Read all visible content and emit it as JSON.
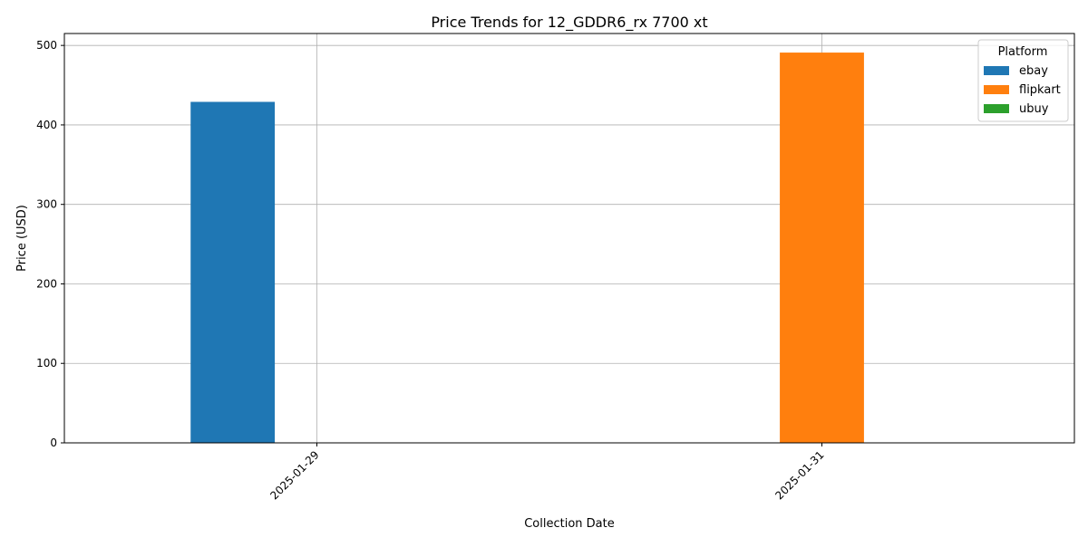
{
  "chart_data": {
    "type": "bar",
    "title": "Price Trends for 12_GDDR6_rx 7700 xt",
    "xlabel": "Collection Date",
    "ylabel": "Price (USD)",
    "categories": [
      "2025-01-29",
      "2025-01-31"
    ],
    "series": [
      {
        "name": "ebay",
        "color": "#1f77b4",
        "values": [
          429,
          null
        ]
      },
      {
        "name": "flipkart",
        "color": "#ff7f0e",
        "values": [
          null,
          491
        ]
      },
      {
        "name": "ubuy",
        "color": "#2ca02c",
        "values": [
          null,
          null
        ]
      }
    ],
    "ylim": [
      0,
      515
    ],
    "yticks": [
      0,
      100,
      200,
      300,
      400,
      500
    ],
    "grid": true,
    "legend": {
      "title": "Platform",
      "placement": "top-right"
    }
  }
}
